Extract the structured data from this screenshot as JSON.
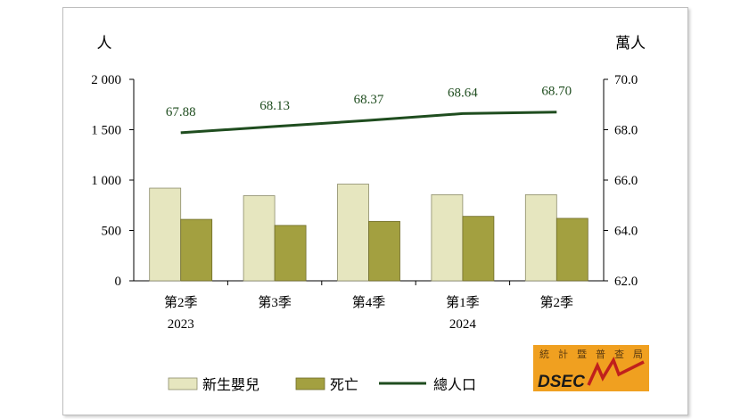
{
  "chart_data": {
    "type": "bar",
    "left_unit": "人",
    "right_unit": "萬人",
    "categories": [
      {
        "quarter": "第2季",
        "year": "2023"
      },
      {
        "quarter": "第3季",
        "year": ""
      },
      {
        "quarter": "第4季",
        "year": ""
      },
      {
        "quarter": "第1季",
        "year": "2024"
      },
      {
        "quarter": "第2季",
        "year": ""
      }
    ],
    "series": [
      {
        "name": "新生嬰兒",
        "type": "bar",
        "axis": "left",
        "color": "#e6e6bf",
        "values": [
          920,
          845,
          960,
          855,
          855
        ]
      },
      {
        "name": "死亡",
        "type": "bar",
        "axis": "left",
        "color": "#a3a040",
        "values": [
          610,
          550,
          590,
          640,
          620
        ]
      },
      {
        "name": "總人口",
        "type": "line",
        "axis": "right",
        "color": "#1f4d1f",
        "values": [
          67.88,
          68.13,
          68.37,
          68.64,
          68.7
        ]
      }
    ],
    "data_labels": [
      "67.88",
      "68.13",
      "68.37",
      "68.64",
      "68.70"
    ],
    "left_axis": {
      "min": 0,
      "max": 2000,
      "ticks": [
        "0",
        "500",
        "1 000",
        "1 500",
        "2 000"
      ],
      "tick_values": [
        0,
        500,
        1000,
        1500,
        2000
      ]
    },
    "right_axis": {
      "min": 62.0,
      "max": 70.0,
      "ticks": [
        "62.0",
        "64.0",
        "66.0",
        "68.0",
        "70.0"
      ],
      "tick_values": [
        62,
        64,
        66,
        68,
        70
      ]
    },
    "legend_position": "bottom",
    "grid": false
  },
  "logo": {
    "text": "DSEC",
    "chars": [
      "統",
      "計",
      "暨",
      "普",
      "查",
      "局"
    ]
  }
}
